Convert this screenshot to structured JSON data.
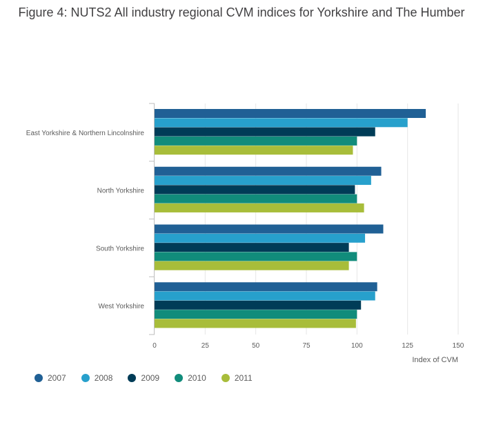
{
  "title": "Figure 4: NUTS2 All industry regional CVM indices for Yorkshire and The Humber",
  "colors": {
    "2007": "#206095",
    "2008": "#27a0cc",
    "2009": "#003c57",
    "2010": "#118c7b",
    "2011": "#a8bd3a",
    "axis": "#bdbdbd",
    "grid": "#e6e6e6"
  },
  "chart_data": {
    "type": "bar",
    "orientation": "horizontal",
    "categories": [
      "East Yorkshire & Northern Lincolnshire",
      "North Yorkshire",
      "South Yorkshire",
      "West Yorkshire"
    ],
    "series": [
      {
        "name": "2007",
        "values": [
          134,
          112,
          113,
          110
        ]
      },
      {
        "name": "2008",
        "values": [
          125,
          107,
          104,
          109
        ]
      },
      {
        "name": "2009",
        "values": [
          109,
          99,
          96,
          102
        ]
      },
      {
        "name": "2010",
        "values": [
          100,
          100,
          100,
          100
        ]
      },
      {
        "name": "2011",
        "values": [
          98,
          103.5,
          96,
          99.5
        ]
      }
    ],
    "xlabel": "Index of CVM",
    "ylabel": "",
    "xlim": [
      0,
      150
    ],
    "xticks": [
      0,
      25,
      50,
      75,
      100,
      125,
      150
    ],
    "grid": true,
    "legend_position": "bottom-left"
  }
}
